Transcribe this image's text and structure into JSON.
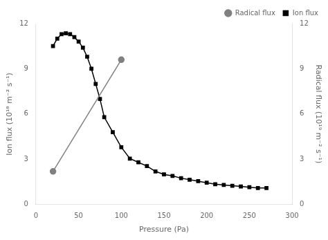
{
  "chart_data": {
    "type": "line",
    "xlabel": "Pressure (Pa)",
    "ylabel": "Ion flux (10¹⁸ m⁻² s⁻¹)",
    "y2label": "Radical flux (10¹⁹ m⁻² s⁻¹)",
    "xlim": [
      0,
      300
    ],
    "xticks": [
      0,
      50,
      100,
      150,
      200,
      250,
      300
    ],
    "ylim": [
      0,
      12
    ],
    "yticks": [
      0,
      3,
      6,
      9,
      12
    ],
    "y2lim": [
      0,
      12
    ],
    "y2ticks": [
      0,
      3,
      6,
      9,
      12
    ],
    "grid": false,
    "legend": "upper right",
    "series": [
      {
        "name": "Radical flux",
        "color": "#808080",
        "marker": "circle",
        "axis": "y2",
        "x": [
          20,
          100
        ],
        "values": [
          2.2,
          9.6
        ]
      },
      {
        "name": "Ion flux",
        "color": "#000000",
        "marker": "square",
        "axis": "y",
        "x": [
          20,
          25,
          30,
          35,
          40,
          45,
          50,
          55,
          60,
          65,
          70,
          75,
          80,
          90,
          100,
          110,
          120,
          130,
          140,
          150,
          160,
          170,
          180,
          190,
          200,
          210,
          220,
          230,
          240,
          250,
          260,
          270
        ],
        "values": [
          10.5,
          11.0,
          11.3,
          11.35,
          11.3,
          11.1,
          10.8,
          10.4,
          9.8,
          9.0,
          8.0,
          7.0,
          5.8,
          4.8,
          3.8,
          3.05,
          2.8,
          2.55,
          2.2,
          2.0,
          1.9,
          1.75,
          1.65,
          1.55,
          1.45,
          1.35,
          1.3,
          1.25,
          1.2,
          1.15,
          1.1,
          1.1
        ]
      }
    ]
  }
}
